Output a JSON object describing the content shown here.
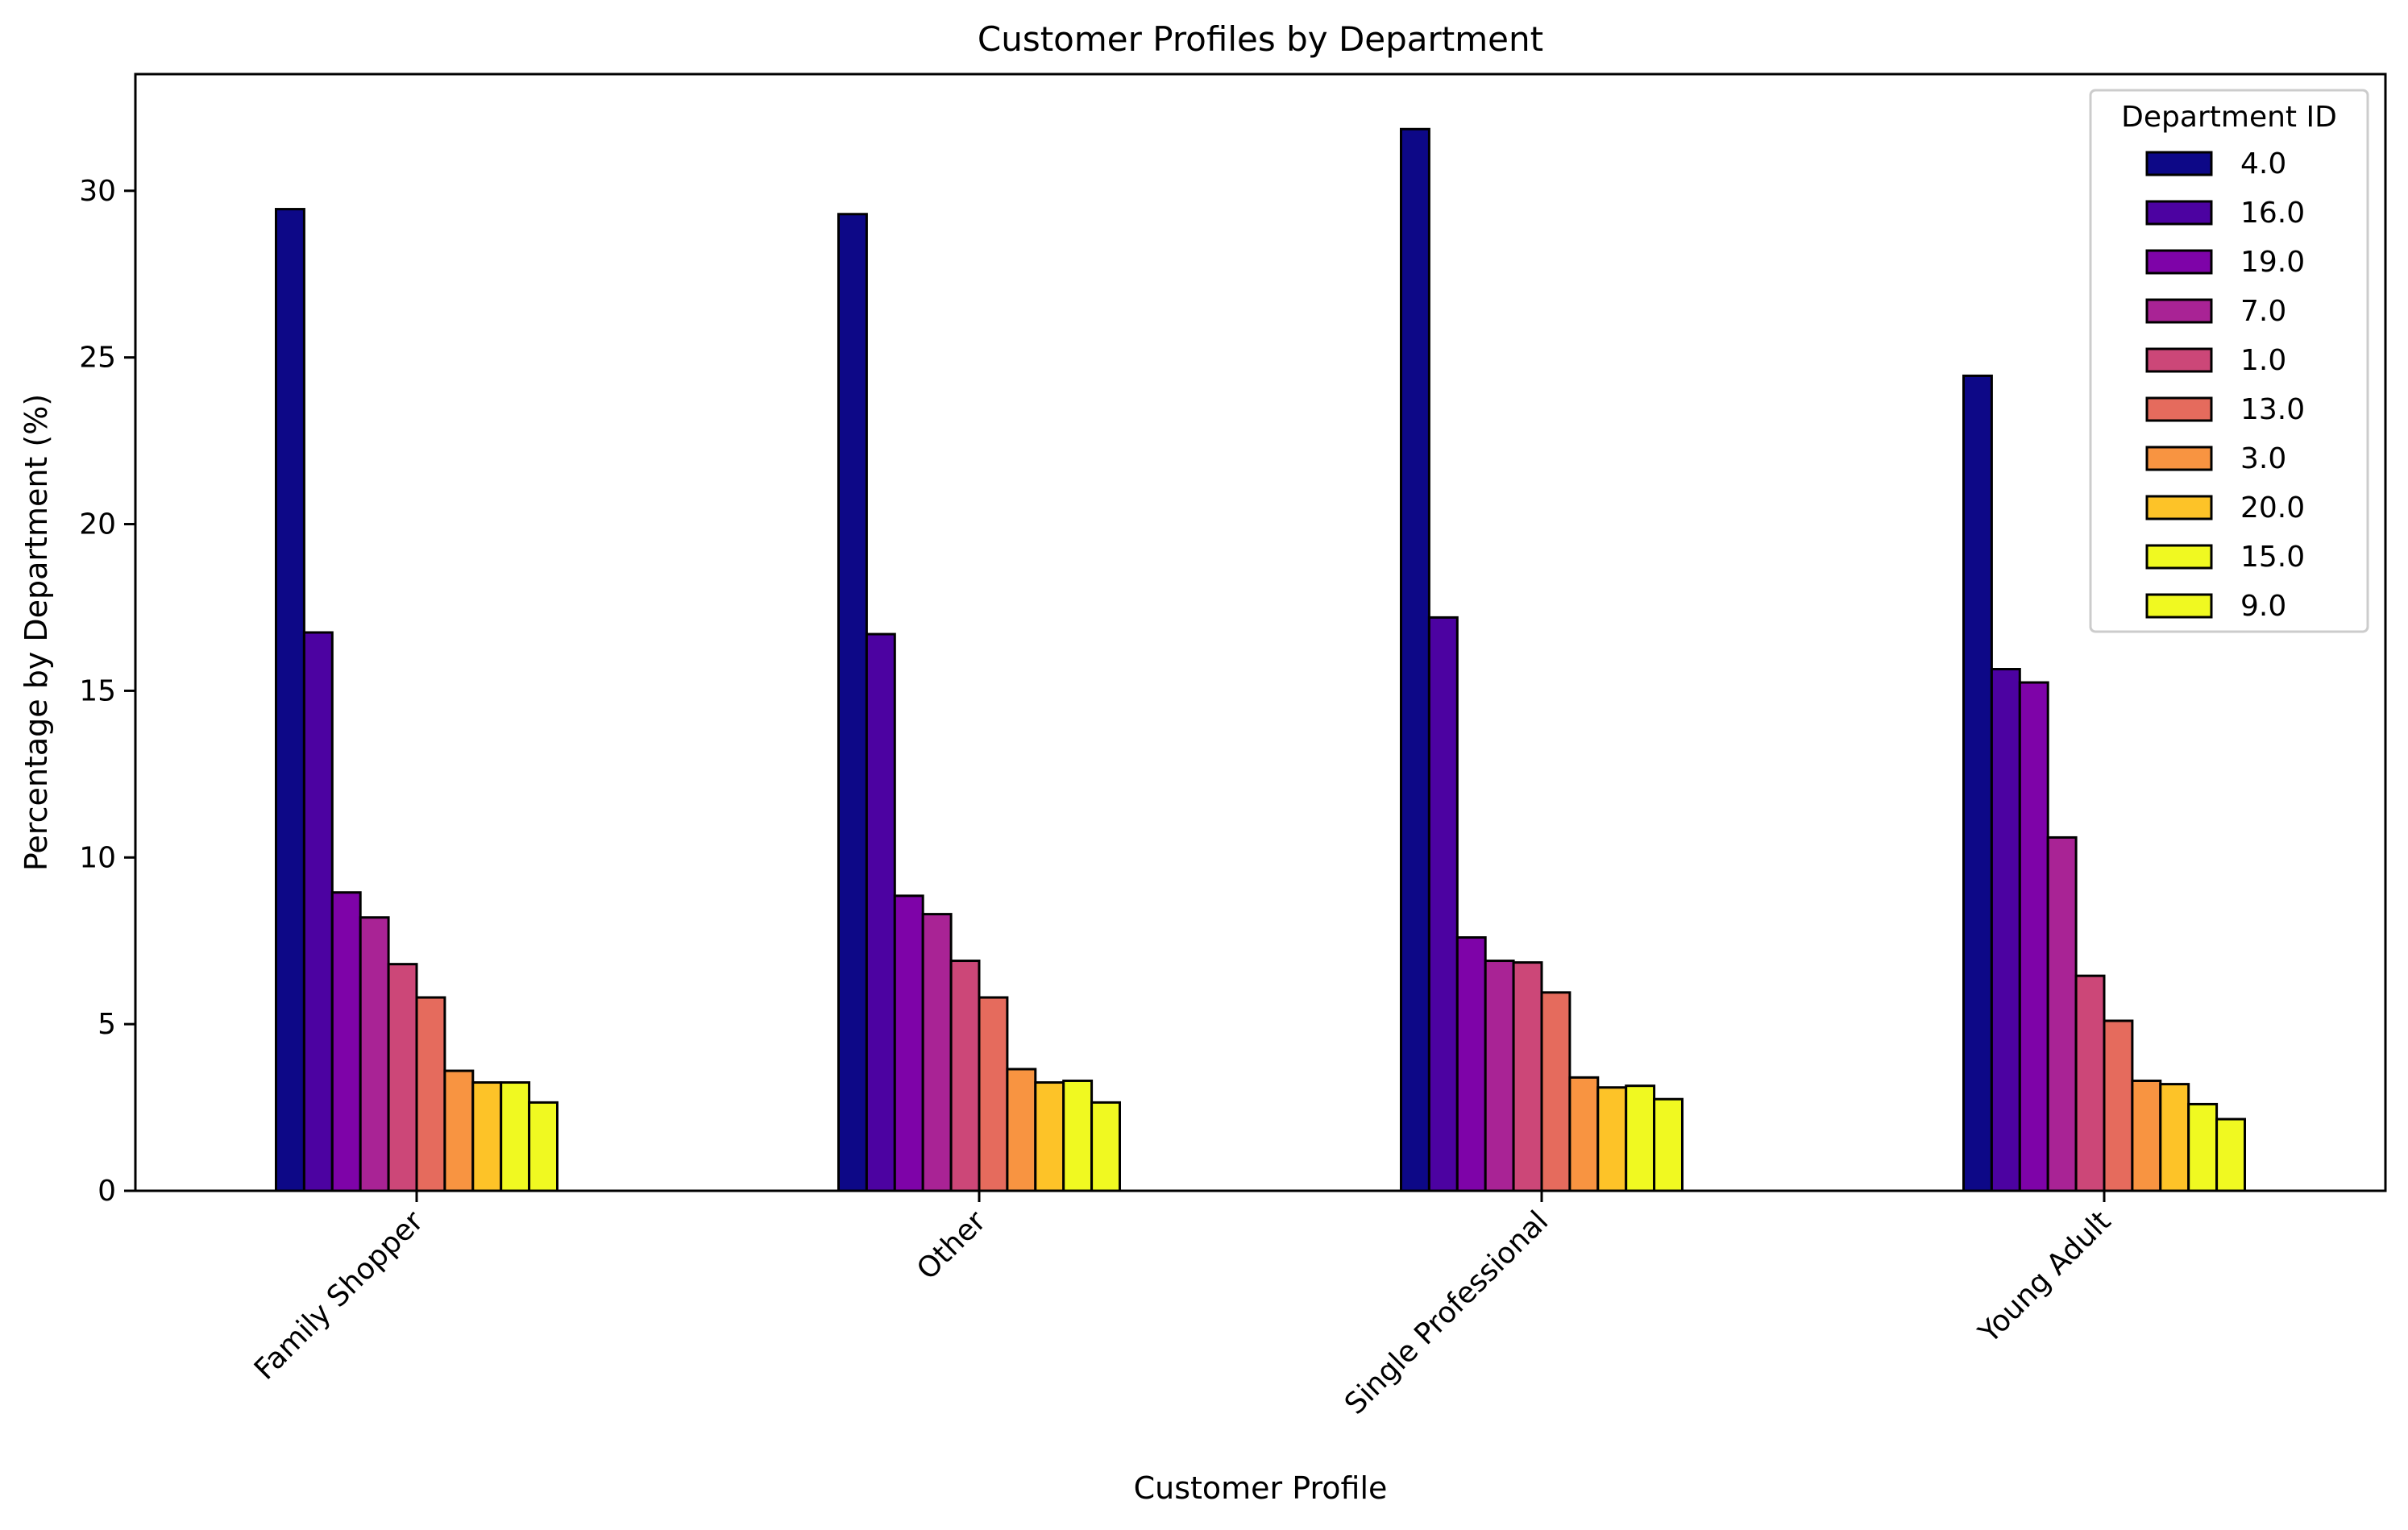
{
  "chart_data": {
    "type": "bar",
    "title": "Customer Profiles by Department",
    "xlabel": "Customer Profile",
    "ylabel": "Percentage by Department (%)",
    "categories": [
      "Family Shopper",
      "Other",
      "Single Professional",
      "Young Adult"
    ],
    "ylim": [
      0,
      33.5
    ],
    "yticks": [
      0,
      5,
      10,
      15,
      20,
      25,
      30
    ],
    "grid": false,
    "legend": {
      "title": "Department ID",
      "position": "top-right"
    },
    "series": [
      {
        "name": "4.0",
        "color": "#0d0887",
        "values": [
          29.45,
          29.3,
          31.85,
          24.45
        ]
      },
      {
        "name": "16.0",
        "color": "#4c02a1",
        "values": [
          16.75,
          16.7,
          17.2,
          15.65
        ]
      },
      {
        "name": "19.0",
        "color": "#7e03a8",
        "values": [
          8.95,
          8.85,
          7.6,
          15.25
        ]
      },
      {
        "name": "7.0",
        "color": "#a92395",
        "values": [
          8.2,
          8.3,
          6.9,
          10.6
        ]
      },
      {
        "name": "1.0",
        "color": "#cc4778",
        "values": [
          6.8,
          6.9,
          6.85,
          6.45
        ]
      },
      {
        "name": "13.0",
        "color": "#e56b5d",
        "values": [
          5.8,
          5.8,
          5.95,
          5.1
        ]
      },
      {
        "name": "3.0",
        "color": "#f89441",
        "values": [
          3.6,
          3.65,
          3.4,
          3.3
        ]
      },
      {
        "name": "20.0",
        "color": "#fdc328",
        "values": [
          3.25,
          3.25,
          3.1,
          3.2
        ]
      },
      {
        "name": "15.0",
        "color": "#f0f921",
        "values": [
          3.25,
          3.3,
          3.15,
          2.6
        ]
      },
      {
        "name": "9.0",
        "color": "#f0f921",
        "values": [
          2.65,
          2.65,
          2.75,
          2.15
        ]
      }
    ]
  }
}
